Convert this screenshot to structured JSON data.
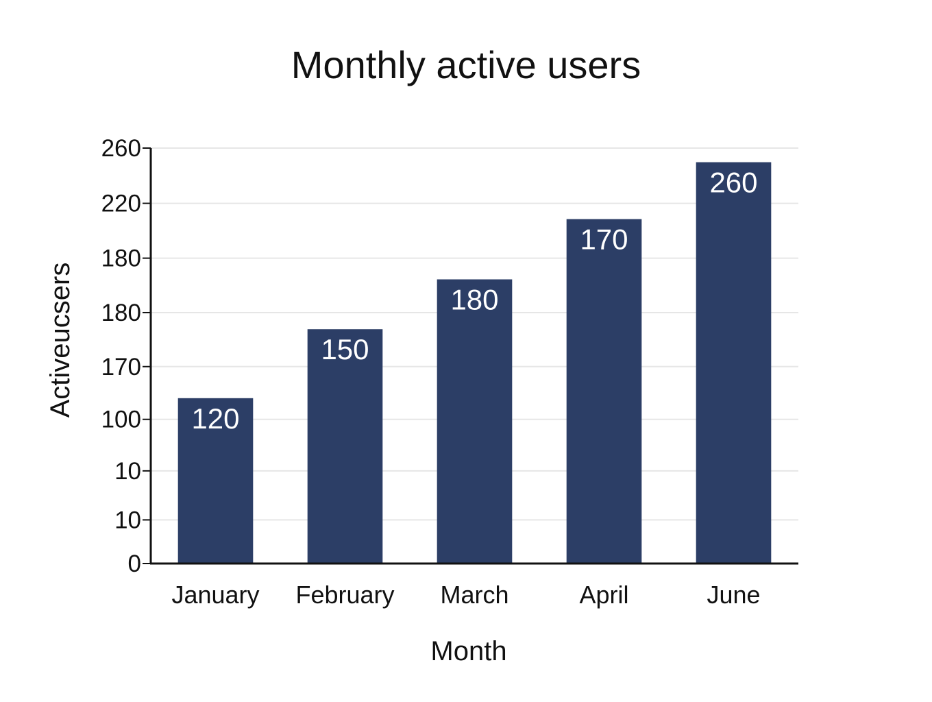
{
  "colors": {
    "bar": "#2c3e66",
    "grid": "#e6e6e6",
    "axis": "#111111"
  },
  "chart_data": {
    "type": "bar",
    "title": "Monthly active users",
    "xlabel": "Month",
    "ylabel": "Activeucsers",
    "categories": [
      "January",
      "February",
      "March",
      "April",
      "June"
    ],
    "values": [
      120,
      150,
      180,
      170,
      260
    ],
    "data_labels": [
      "120",
      "150",
      "180",
      "170",
      "260"
    ],
    "bar_fractions": [
      0.398,
      0.564,
      0.684,
      0.829,
      0.966
    ],
    "ytick_labels": [
      "0",
      "10",
      "10",
      "100",
      "170",
      "180",
      "180",
      "220",
      "260"
    ],
    "ytick_fractions": [
      0.0,
      0.105,
      0.223,
      0.347,
      0.474,
      0.604,
      0.735,
      0.867,
      1.0
    ],
    "grid": true,
    "legend": "none"
  }
}
